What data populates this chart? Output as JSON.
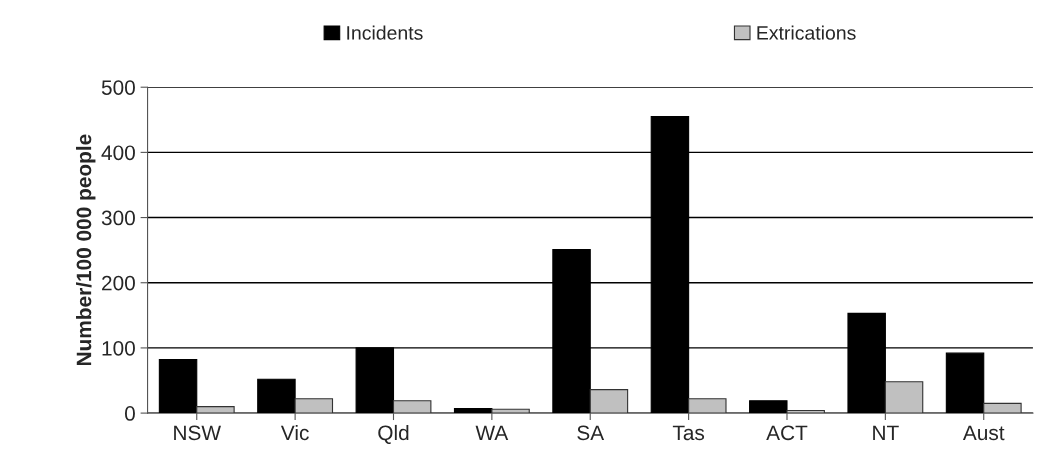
{
  "chart_data": {
    "type": "bar",
    "ylabel": "Number/100 000 people",
    "categories": [
      "NSW",
      "Vic",
      "Qld",
      "WA",
      "SA",
      "Tas",
      "ACT",
      "NT",
      "Aust"
    ],
    "series": [
      {
        "name": "Incidents",
        "color": "#000000",
        "values": [
          82,
          52,
          100,
          7,
          251,
          455,
          19,
          153,
          92
        ]
      },
      {
        "name": "Extrications",
        "color": "#c0c0c0",
        "values": [
          10,
          22,
          19,
          6,
          36,
          22,
          4,
          48,
          15
        ]
      }
    ],
    "ylim": [
      0,
      500
    ],
    "yticks": [
      0,
      100,
      200,
      300,
      400,
      500
    ],
    "grid": "y",
    "legend": "top"
  }
}
